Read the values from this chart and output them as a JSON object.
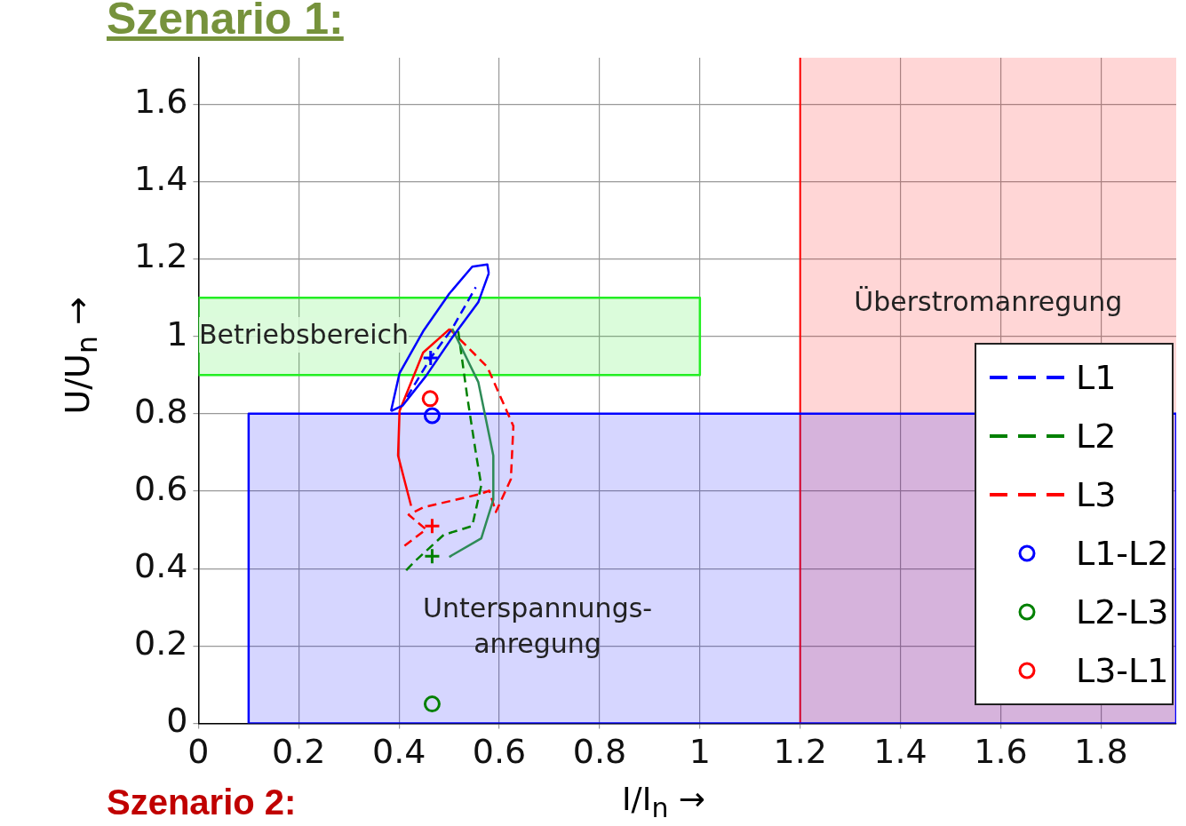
{
  "chart_data": {
    "type": "line",
    "title": "Szenario 1:",
    "xlabel": "I/I$_{n}$ →",
    "ylabel": "U/U$_{n}$ →",
    "xlim": [
      0,
      1.95
    ],
    "ylim": [
      0,
      1.72
    ],
    "xticks": [
      0,
      0.2,
      0.4,
      0.6,
      0.8,
      1,
      1.2,
      1.4,
      1.6,
      1.8
    ],
    "yticks": [
      0,
      0.2,
      0.4,
      0.6,
      0.8,
      1,
      1.2,
      1.4,
      1.6
    ],
    "grid": true,
    "legend": "right",
    "marker": "none",
    "bands": [
      {
        "axis": "x",
        "from": 1.2,
        "to": 1.95,
        "label": "Überstromanregung",
        "color": "#ff0000"
      }
    ],
    "ref_lines": [
      {
        "axis": "x",
        "value": 1.2,
        "color": "#ff0000"
      }
    ],
    "series": [
      {
        "type": "area",
        "color": "#0000ff",
        "x": [
          0.1,
          1.95,
          1.95,
          0.1,
          0.1
        ],
        "values": [
          0,
          0,
          0.8,
          0.8,
          0
        ]
      },
      {
        "type": "area",
        "color": "#22ee22",
        "x": [
          0,
          1,
          1,
          0,
          0
        ],
        "values": [
          0.9,
          0.9,
          1.1,
          1.1,
          0.9
        ]
      },
      {
        "color": "#0000ff",
        "line_style": "solid",
        "x": [
          0.384,
          0.401,
          0.448,
          0.5,
          0.546,
          0.576,
          0.579
        ],
        "values": [
          0.807,
          0.905,
          1.013,
          1.11,
          1.18,
          1.186,
          1.163
        ]
      },
      {
        "color": "#0000ff",
        "line_style": "solid",
        "x": [
          0.579,
          0.558,
          0.506,
          0.454,
          0.407,
          0.384
        ],
        "values": [
          1.163,
          1.088,
          0.997,
          0.898,
          0.821,
          0.807
        ]
      },
      {
        "color": "#2e8b57",
        "line_style": "solid",
        "x": [
          0.506,
          0.558,
          0.588,
          0.588,
          0.564,
          0.5
        ],
        "values": [
          1.02,
          0.882,
          0.692,
          0.578,
          0.478,
          0.43
        ]
      },
      {
        "color": "#ff0000",
        "line_style": "solid",
        "x": [
          0.501,
          0.448,
          0.401,
          0.398,
          0.424
        ],
        "values": [
          1.019,
          0.958,
          0.807,
          0.692,
          0.562
        ]
      },
      {
        "name": "L1",
        "color": "#0000ff",
        "line_style": "dashed",
        "x": [
          0.416,
          0.463,
          0.506,
          0.553
        ],
        "values": [
          0.843,
          0.944,
          1.02,
          1.127
        ]
      },
      {
        "name": "L2",
        "color": "#008000",
        "line_style": "dashed",
        "x": [
          0.518,
          0.536,
          0.554,
          0.564,
          0.546,
          0.489,
          0.431,
          0.407
        ],
        "values": [
          1.013,
          0.844,
          0.692,
          0.615,
          0.51,
          0.487,
          0.418,
          0.386
        ]
      },
      {
        "name": "L3",
        "color": "#ff0000",
        "line_style": "dashed",
        "x": [
          0.501,
          0.576,
          0.628,
          0.623,
          0.593,
          0.58,
          0.56,
          0.448,
          0.419,
          0.454,
          0.407
        ],
        "values": [
          1.019,
          0.921,
          0.768,
          0.631,
          0.546,
          0.601,
          0.592,
          0.558,
          0.539,
          0.501,
          0.455
        ]
      },
      {
        "type": "scatter",
        "marker": "cross",
        "color": "#0000ff",
        "x": [
          0.463
        ],
        "values": [
          0.944
        ]
      },
      {
        "type": "scatter",
        "marker": "cross",
        "color": "#008000",
        "x": [
          0.466
        ],
        "values": [
          0.432
        ]
      },
      {
        "type": "scatter",
        "marker": "cross",
        "color": "#ff0000",
        "x": [
          0.466
        ],
        "values": [
          0.51
        ]
      },
      {
        "type": "scatter",
        "marker": "circle",
        "name": "L1-L2",
        "color": "#0000ff",
        "x": [
          0.466
        ],
        "values": [
          0.795
        ]
      },
      {
        "type": "scatter",
        "marker": "circle",
        "name": "L2-L3",
        "color": "#008000",
        "x": [
          0.466
        ],
        "values": [
          0.05
        ]
      },
      {
        "type": "scatter",
        "marker": "circle",
        "name": "L3-L1",
        "color": "#ff0000",
        "x": [
          0.462
        ],
        "values": [
          0.839
        ]
      }
    ],
    "annotations": [
      "Betriebsbereich",
      "Unterspannungs- anregung",
      "Szenario 2:"
    ]
  }
}
